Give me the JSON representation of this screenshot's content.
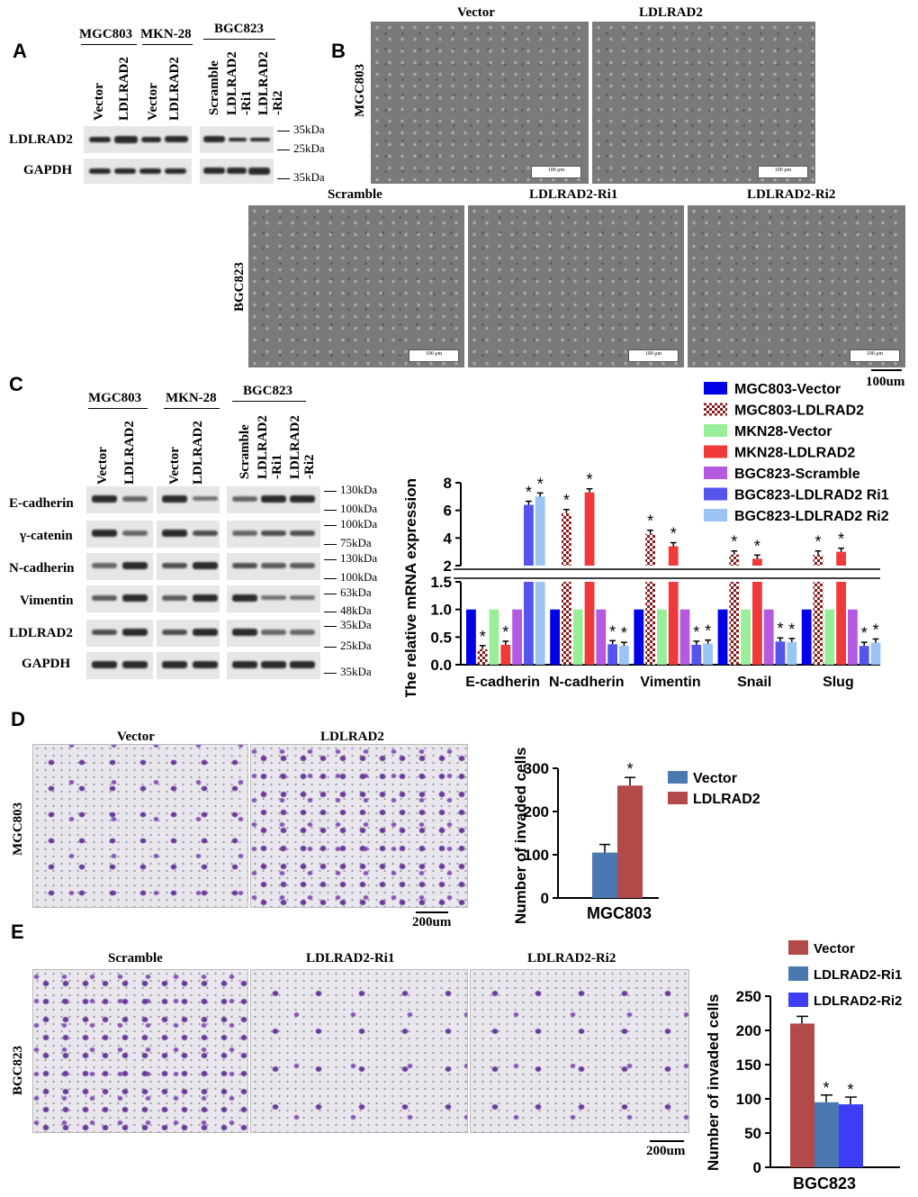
{
  "panels": {
    "a": "A",
    "b": "B",
    "c": "C",
    "d": "D",
    "e": "E"
  },
  "panelA": {
    "groups": [
      "MGC803",
      "MKN-28",
      "BGC823"
    ],
    "lanes": [
      "Vector",
      "LDLRAD2",
      "Vector",
      "LDLRAD2",
      "Scramble",
      "LDLRAD2 -Ri1",
      "LDLRAD2 -Ri2"
    ],
    "rows": [
      "LDLRAD2",
      "GAPDH"
    ],
    "markers": [
      "35kDa",
      "25kDa",
      "35kDa"
    ]
  },
  "panelB": {
    "top_titles": [
      "Vector",
      "LDLRAD2"
    ],
    "bottom_titles": [
      "Scramble",
      "LDLRAD2-Ri1",
      "LDLRAD2-Ri2"
    ],
    "row_labels": [
      "MGC803",
      "BGC823"
    ],
    "scale_small": "100 μm",
    "scale": "100um"
  },
  "panelC": {
    "groups": [
      "MGC803",
      "MKN-28",
      "BGC823"
    ],
    "lanes": [
      "Vector",
      "LDLRAD2",
      "Vector",
      "LDLRAD2",
      "Scramble",
      "LDLRAD2 -Ri1",
      "LDLRAD2 -Ri2"
    ],
    "rows": [
      "E-cadherin",
      "γ-catenin",
      "N-cadherin",
      "Vimentin",
      "LDLRAD2",
      "GAPDH"
    ],
    "markers": [
      "130kDa",
      "100kDa",
      "100kDa",
      "75kDa",
      "130kDa",
      "100kDa",
      "63kDa",
      "48kDa",
      "35kDa",
      "25kDa",
      "35kDa"
    ]
  },
  "panelD": {
    "titles": [
      "Vector",
      "LDLRAD2"
    ],
    "row_label": "MGC803",
    "scale": "200um"
  },
  "panelE": {
    "titles": [
      "Scramble",
      "LDLRAD2-Ri1",
      "LDLRAD2-Ri2"
    ],
    "row_label": "BGC823",
    "scale": "200um"
  },
  "chart_data": [
    {
      "type": "bar",
      "ylabel": "The relative mRNA expression",
      "categories": [
        "E-cadherin",
        "N-cadherin",
        "Vimentin",
        "Snail",
        "Slug"
      ],
      "y_axis": "broken",
      "ylim_lower": [
        0,
        1.5
      ],
      "ylim_upper": [
        2,
        8
      ],
      "yticks_lower": [
        "0.0",
        "0.5",
        "1.0",
        "1.5"
      ],
      "yticks_upper": [
        "2",
        "4",
        "6",
        "8"
      ],
      "legend_position": "top-right",
      "series": [
        {
          "name": "MGC803-Vector",
          "color": "#0000e6",
          "values": [
            1,
            1,
            1,
            1,
            1
          ]
        },
        {
          "name": "MGC803-LDLRAD2",
          "color": "#8b1a1a",
          "pattern": "checker",
          "values": [
            0.28,
            5.8,
            4.3,
            2.8,
            2.8
          ]
        },
        {
          "name": "MKN28-Vector",
          "color": "#99ee99",
          "values": [
            1,
            1,
            1,
            1,
            1
          ]
        },
        {
          "name": "MKN28-LDLRAD2",
          "color": "#f03a3a",
          "values": [
            0.36,
            7.3,
            3.4,
            2.5,
            3.0
          ]
        },
        {
          "name": "BGC823-Scramble",
          "color": "#b45ae0",
          "values": [
            1,
            1,
            1,
            1,
            1
          ]
        },
        {
          "name": "BGC823-LDLRAD2 Ri1",
          "color": "#5555ee",
          "values": [
            6.4,
            0.37,
            0.36,
            0.42,
            0.34
          ]
        },
        {
          "name": "BGC823-LDLRAD2 Ri2",
          "color": "#99c4f4",
          "values": [
            7.0,
            0.34,
            0.38,
            0.41,
            0.4
          ]
        }
      ],
      "significance": "*"
    },
    {
      "type": "bar",
      "ylabel": "Number of invaded cells",
      "xlabel": "MGC803",
      "yticks": [
        "0",
        "100",
        "200",
        "300"
      ],
      "ylim": [
        0,
        300
      ],
      "legend_position": "top-right",
      "series": [
        {
          "name": "Vector",
          "color": "#4a78b0",
          "values": [
            105
          ]
        },
        {
          "name": "LDLRAD2",
          "color": "#b24a4a",
          "values": [
            260
          ]
        }
      ],
      "significance": "*"
    },
    {
      "type": "bar",
      "ylabel": "Number of invaded cells",
      "xlabel": "BGC823",
      "yticks": [
        "0",
        "50",
        "100",
        "150",
        "200",
        "250"
      ],
      "ylim": [
        0,
        250
      ],
      "legend_position": "top-right",
      "series": [
        {
          "name": "Vector",
          "color": "#b24a4a",
          "values": [
            210
          ]
        },
        {
          "name": "LDLRAD2-Ri1",
          "color": "#4a78b0",
          "values": [
            95
          ]
        },
        {
          "name": "LDLRAD2-Ri2",
          "color": "#3d3df5",
          "values": [
            92
          ]
        }
      ],
      "significance": "*"
    }
  ]
}
